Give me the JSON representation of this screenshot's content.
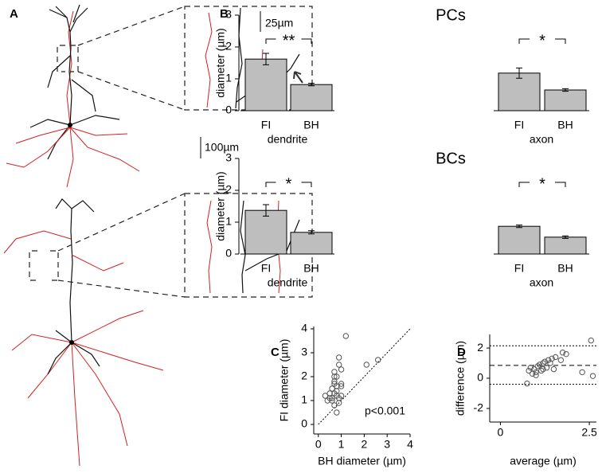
{
  "panel_labels": [
    "A",
    "B",
    "C",
    "D"
  ],
  "scale_bars": [
    "25µm",
    "100µm"
  ],
  "chart_data": [
    {
      "type": "bar",
      "title": "PCs",
      "ylabel": "diameter (µm)",
      "categories": [
        "FI",
        "BH",
        "FI",
        "BH"
      ],
      "groups": [
        "dendrite",
        "axon"
      ],
      "values": [
        1.62,
        0.82,
        1.18,
        0.65
      ],
      "errors": [
        0.18,
        0.04,
        0.16,
        0.04
      ],
      "annotations": [
        "**",
        "*"
      ],
      "color": "#bebebe",
      "ylim": [
        0,
        3
      ],
      "yticks": [
        0,
        1,
        2,
        3
      ]
    },
    {
      "type": "bar",
      "title": "BCs",
      "ylabel": "diameter (µm)",
      "categories": [
        "FI",
        "BH",
        "FI",
        "BH"
      ],
      "groups": [
        "dendrite",
        "axon"
      ],
      "values": [
        1.37,
        0.68,
        0.87,
        0.53
      ],
      "errors": [
        0.18,
        0.05,
        0.04,
        0.04
      ],
      "annotations": [
        "*",
        "*"
      ],
      "color": "#bebebe",
      "ylim": [
        0,
        3
      ],
      "yticks": [
        0,
        1,
        2,
        3
      ]
    },
    {
      "type": "scatter",
      "xlabel": "BH diameter (µm)",
      "ylabel": "FI diameter (µm)",
      "annotation": "p<0.001",
      "identity_line": true,
      "color": "#555555",
      "x": [
        0.3,
        0.4,
        0.5,
        0.5,
        0.6,
        0.6,
        0.7,
        0.7,
        0.7,
        0.7,
        0.8,
        0.8,
        0.8,
        0.8,
        0.8,
        0.9,
        0.9,
        0.9,
        1.0,
        1.0,
        1.0,
        1.0,
        1.2,
        2.1,
        2.6,
        0.6,
        0.7,
        0.9,
        0.7
      ],
      "y": [
        1.2,
        1.0,
        1.1,
        1.3,
        1.0,
        1.5,
        1.7,
        2.0,
        2.2,
        1.8,
        1.4,
        1.6,
        2.0,
        1.2,
        0.5,
        2.5,
        2.8,
        1.1,
        1.6,
        1.2,
        2.3,
        1.7,
        3.7,
        2.5,
        2.7,
        1.1,
        1.3,
        0.9,
        0.8
      ],
      "xlim": [
        -0.2,
        4.0
      ],
      "ylim": [
        -0.4,
        4.1
      ],
      "xticks": [
        0,
        1,
        2,
        3,
        4
      ],
      "yticks": [
        0,
        1,
        2,
        3,
        4
      ]
    },
    {
      "type": "scatter",
      "xlabel": "average (µm)",
      "ylabel": "difference (µm)",
      "color": "#555555",
      "mean": 0.85,
      "limits": [
        -0.4,
        2.15
      ],
      "x": [
        0.75,
        0.8,
        0.85,
        0.9,
        0.95,
        1.0,
        1.05,
        1.1,
        1.15,
        1.2,
        1.25,
        1.3,
        1.35,
        1.4,
        1.45,
        1.5,
        1.55,
        1.7,
        1.75,
        1.85,
        2.3,
        2.55,
        2.6,
        1.0,
        1.2
      ],
      "y": [
        -0.35,
        0.5,
        0.7,
        0.3,
        0.6,
        0.4,
        0.8,
        0.9,
        0.5,
        1.0,
        1.1,
        0.7,
        1.2,
        1.0,
        1.3,
        0.6,
        1.4,
        1.2,
        1.7,
        1.6,
        0.4,
        2.5,
        0.15,
        0.2,
        0.6
      ],
      "xlim": [
        -0.3,
        2.7
      ],
      "ylim": [
        -2.9,
        2.9
      ],
      "xticks": [
        0,
        {
          "value": 2.5,
          "label": "2.5"
        }
      ],
      "yticks": [
        -2,
        0,
        2
      ]
    }
  ]
}
